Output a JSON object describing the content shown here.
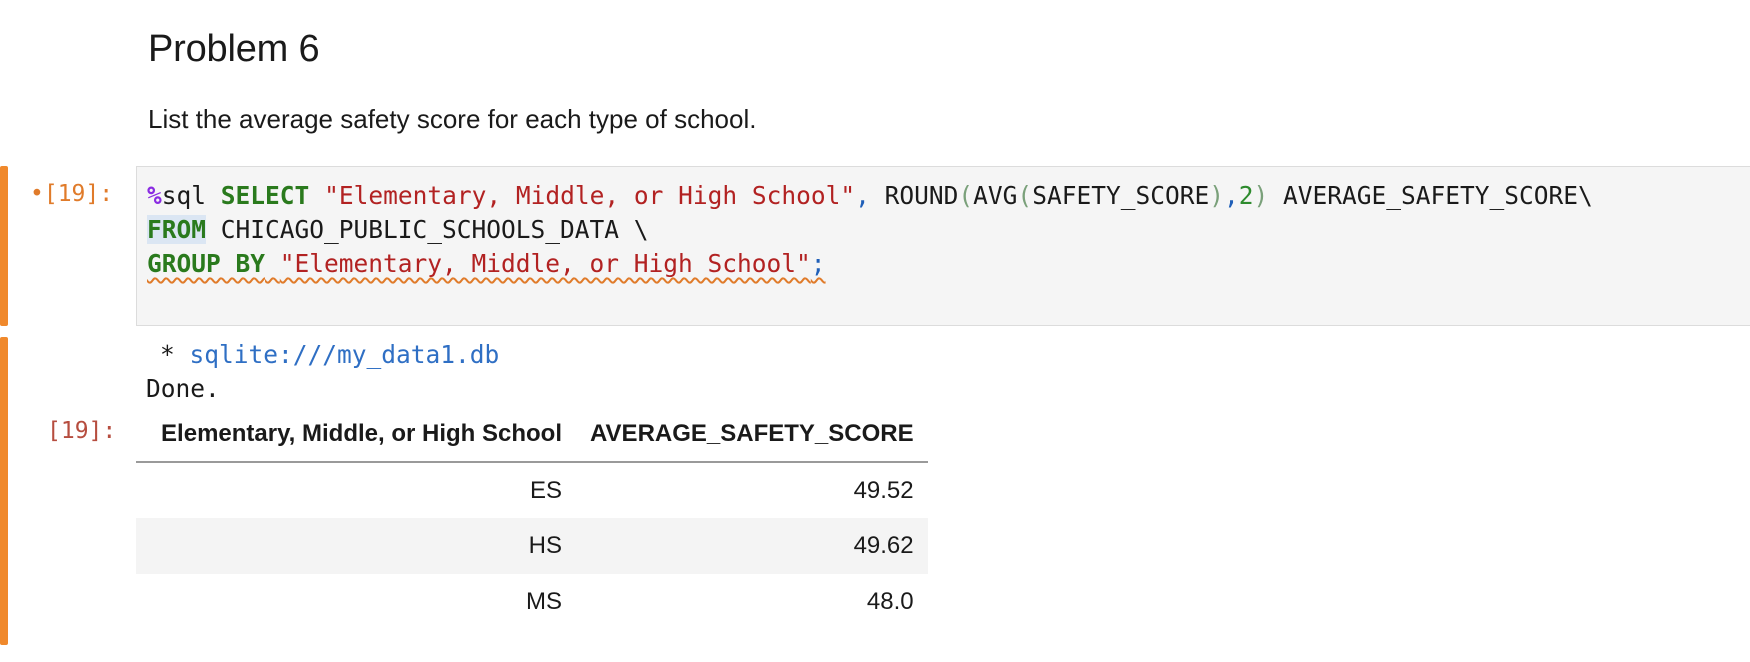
{
  "markdown": {
    "title": "Problem 6",
    "text": "List the average safety score for each type of school."
  },
  "input_cell": {
    "prompt": "[19]:",
    "modified_dot": "•",
    "code": {
      "l1_magic_sym": "%",
      "l1_magic": "sql",
      "l1_kw": "SELECT",
      "l1_str": "\"Elementary, Middle, or High School\"",
      "l1_comma": ",",
      "l1_fn1": "ROUND",
      "l1_p1": "(",
      "l1_fn2": "AVG",
      "l1_p2": "(",
      "l1_arg": "SAFETY_SCORE",
      "l1_p3": ")",
      "l1_comma2": ",",
      "l1_num": "2",
      "l1_p4": ")",
      "l1_alias": "AVERAGE_SAFETY_SCORE\\",
      "l2_kw": "FROM",
      "l2_rest": "CHICAGO_PUBLIC_SCHOOLS_DATA \\",
      "l3_kw": "GROUP BY",
      "l3_str": "\"Elementary, Middle, or High School\"",
      "l3_semi": ";"
    }
  },
  "output_cell": {
    "prompt": "[19]:",
    "connection_prefix": "* ",
    "connection": "sqlite:///my_data1.db",
    "status": "Done.",
    "table": {
      "columns": [
        "Elementary, Middle, or High School",
        "AVERAGE_SAFETY_SCORE"
      ],
      "rows": [
        [
          "ES",
          "49.52"
        ],
        [
          "HS",
          "49.62"
        ],
        [
          "MS",
          "48.0"
        ]
      ]
    }
  },
  "colors": {
    "cell_bar": "#f0892c",
    "keyword": "#2a7a1d",
    "string": "#b22222",
    "magic": "#8a2be2",
    "link": "#2f6fc4"
  }
}
